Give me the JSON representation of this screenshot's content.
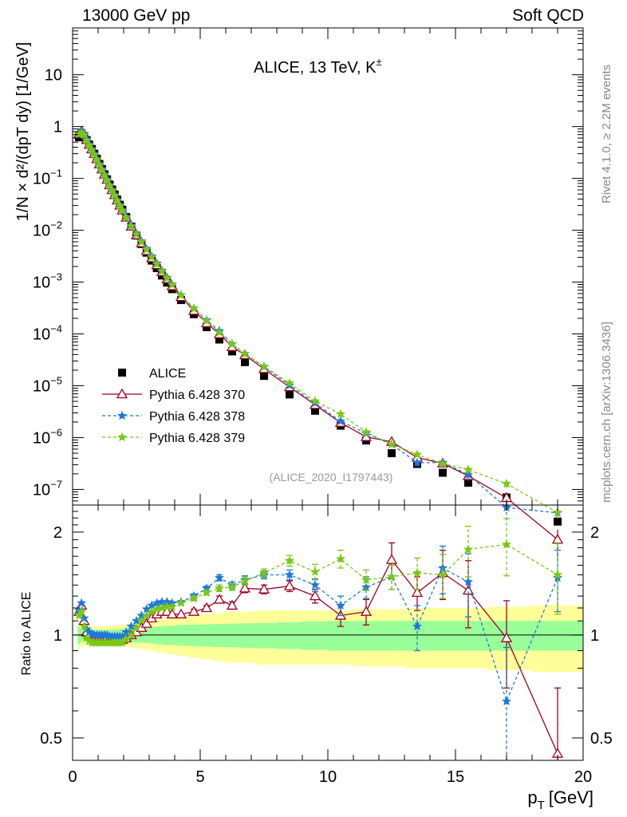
{
  "header": {
    "left": "13000 GeV pp",
    "right": "Soft QCD"
  },
  "side_labels": {
    "rivet": "Rivet 4.1.0, ≥ 2.2M events",
    "mcplots": "mcplots.cern.ch [arXiv:1306.3436]"
  },
  "chart_data": {
    "type": "scatter",
    "title": "ALICE, 13 TeV, K±",
    "title_main": "ALICE, 13 TeV, K",
    "title_sup": "±",
    "analysis_tag": "(ALICE_2020_I1797443)",
    "xlabel": "pT [GeV]",
    "xlabel_main": "p",
    "xlabel_sub": "T",
    "xlabel_unit": "[GeV]",
    "xlim": [
      0,
      20
    ],
    "x_ticks": [
      "0",
      "5",
      "10",
      "15",
      "20"
    ],
    "main_panel": {
      "ylabel": "1/N × d²/(dpT dy) [1/GeV]",
      "yscale": "log",
      "ylim": [
        5e-08,
        80
      ],
      "y_ticks": [
        {
          "value": 10,
          "label": "10"
        },
        {
          "value": 1,
          "label": "1"
        },
        {
          "value": 0.1,
          "label": "10",
          "exp": "−1"
        },
        {
          "value": 0.01,
          "label": "10",
          "exp": "−2"
        },
        {
          "value": 0.001,
          "label": "10",
          "exp": "−3"
        },
        {
          "value": 0.0001,
          "label": "10",
          "exp": "−4"
        },
        {
          "value": 1e-05,
          "label": "10",
          "exp": "−5"
        },
        {
          "value": 1e-06,
          "label": "10",
          "exp": "−6"
        },
        {
          "value": 1e-07,
          "label": "10",
          "exp": "−7"
        }
      ]
    },
    "ratio_panel": {
      "ylabel": "Ratio to ALICE",
      "yscale": "log",
      "ylim": [
        0.43,
        2.4
      ],
      "y_ticks": [
        {
          "value": 0.5,
          "label": "0.5"
        },
        {
          "value": 1,
          "label": "1"
        },
        {
          "value": 2,
          "label": "2"
        }
      ]
    },
    "x": [
      0.25,
      0.35,
      0.45,
      0.55,
      0.65,
      0.75,
      0.85,
      0.95,
      1.05,
      1.15,
      1.25,
      1.35,
      1.45,
      1.55,
      1.65,
      1.75,
      1.85,
      1.95,
      2.1,
      2.3,
      2.5,
      2.7,
      2.9,
      3.1,
      3.3,
      3.5,
      3.7,
      3.9,
      4.25,
      4.75,
      5.25,
      5.75,
      6.25,
      6.75,
      7.5,
      8.5,
      9.5,
      10.5,
      11.5,
      12.5,
      13.5,
      14.5,
      15.5,
      17.0,
      19.0
    ],
    "data": {
      "name": "ALICE",
      "values": [
        0.62,
        0.66,
        0.65,
        0.55,
        0.45,
        0.37,
        0.3,
        0.24,
        0.19,
        0.152,
        0.12,
        0.096,
        0.076,
        0.061,
        0.049,
        0.039,
        0.031,
        0.025,
        0.018,
        0.0118,
        0.0079,
        0.0054,
        0.0037,
        0.0026,
        0.00186,
        0.00134,
        0.00098,
        0.00073,
        0.00045,
        0.00024,
        0.000135,
        7.8e-05,
        4.6e-05,
        2.86e-05,
        1.55e-05,
        6.8e-06,
        3.3e-06,
        1.7e-06,
        8.8e-07,
        5e-07,
        3.1e-07,
        2.1e-07,
        1.35e-07,
        7e-08,
        2.4e-08
      ],
      "ratio_band_stat": [
        0.06,
        0.045,
        0.04,
        0.038,
        0.036,
        0.035,
        0.035,
        0.035,
        0.035,
        0.035,
        0.035,
        0.036,
        0.036,
        0.037,
        0.038,
        0.04,
        0.04,
        0.042,
        0.045,
        0.048,
        0.05,
        0.05,
        0.052,
        0.055,
        0.06,
        0.06,
        0.065,
        0.065,
        0.07,
        0.072,
        0.075,
        0.078,
        0.08,
        0.082,
        0.085,
        0.09,
        0.095,
        0.1,
        0.1,
        0.1,
        0.1,
        0.1,
        0.1,
        0.1,
        0.1
      ],
      "ratio_band_total": [
        0.09,
        0.075,
        0.07,
        0.065,
        0.062,
        0.06,
        0.06,
        0.06,
        0.06,
        0.06,
        0.06,
        0.062,
        0.063,
        0.065,
        0.066,
        0.068,
        0.07,
        0.072,
        0.075,
        0.08,
        0.085,
        0.09,
        0.095,
        0.1,
        0.11,
        0.11,
        0.12,
        0.12,
        0.13,
        0.14,
        0.15,
        0.16,
        0.17,
        0.17,
        0.18,
        0.18,
        0.18,
        0.18,
        0.19,
        0.19,
        0.2,
        0.2,
        0.2,
        0.21,
        0.22
      ]
    },
    "series": [
      {
        "name": "Pythia 6.428 370",
        "color": "#a0001e",
        "marker": "triangle-open",
        "line": "solid",
        "ratio": [
          1.17,
          1.22,
          1.1,
          1.02,
          1.0,
          0.99,
          0.99,
          0.99,
          0.99,
          0.99,
          0.99,
          0.99,
          0.98,
          0.98,
          0.98,
          0.97,
          0.97,
          0.97,
          0.98,
          1.0,
          1.02,
          1.05,
          1.08,
          1.12,
          1.15,
          1.17,
          1.17,
          1.15,
          1.15,
          1.17,
          1.2,
          1.27,
          1.22,
          1.37,
          1.36,
          1.39,
          1.3,
          1.14,
          1.17,
          1.66,
          1.33,
          1.52,
          1.35,
          0.98,
          0.45
        ],
        "ratio_err": [
          0.01,
          0.01,
          0.01,
          0.01,
          0.01,
          0.01,
          0.01,
          0.01,
          0.01,
          0.01,
          0.01,
          0.01,
          0.01,
          0.01,
          0.01,
          0.01,
          0.01,
          0.01,
          0.01,
          0.01,
          0.01,
          0.01,
          0.01,
          0.01,
          0.01,
          0.01,
          0.01,
          0.01,
          0.01,
          0.02,
          0.02,
          0.03,
          0.03,
          0.04,
          0.04,
          0.05,
          0.06,
          0.08,
          0.1,
          0.2,
          0.15,
          0.25,
          0.3,
          0.28,
          0.25
        ]
      },
      {
        "name": "Pythia 6.428 378",
        "color": "#1e78dc",
        "marker": "star",
        "line": "dashed",
        "ratio": [
          1.18,
          1.24,
          1.12,
          1.04,
          1.02,
          1.01,
          1.0,
          1.0,
          1.0,
          1.0,
          1.0,
          1.0,
          0.99,
          0.99,
          0.99,
          0.99,
          0.99,
          0.99,
          1.02,
          1.06,
          1.1,
          1.14,
          1.19,
          1.22,
          1.24,
          1.25,
          1.25,
          1.24,
          1.25,
          1.3,
          1.37,
          1.47,
          1.4,
          1.45,
          1.5,
          1.5,
          1.4,
          1.22,
          1.38,
          1.48,
          1.06,
          1.57,
          1.43,
          0.64,
          1.47
        ],
        "ratio_err": [
          0.01,
          0.01,
          0.01,
          0.01,
          0.01,
          0.01,
          0.01,
          0.01,
          0.01,
          0.01,
          0.01,
          0.01,
          0.01,
          0.01,
          0.01,
          0.01,
          0.01,
          0.01,
          0.01,
          0.01,
          0.01,
          0.01,
          0.01,
          0.01,
          0.01,
          0.01,
          0.01,
          0.01,
          0.01,
          0.02,
          0.02,
          0.03,
          0.03,
          0.04,
          0.04,
          0.05,
          0.06,
          0.08,
          0.1,
          0.12,
          0.16,
          0.25,
          0.3,
          0.28,
          0.3
        ]
      },
      {
        "name": "Pythia 6.428 379",
        "color": "#78c814",
        "marker": "star",
        "line": "dashed",
        "ratio": [
          1.14,
          1.17,
          1.06,
          0.98,
          0.96,
          0.95,
          0.95,
          0.95,
          0.95,
          0.95,
          0.95,
          0.95,
          0.95,
          0.95,
          0.95,
          0.95,
          0.95,
          0.95,
          0.97,
          1.0,
          1.05,
          1.1,
          1.14,
          1.17,
          1.19,
          1.2,
          1.21,
          1.21,
          1.24,
          1.28,
          1.33,
          1.37,
          1.38,
          1.44,
          1.52,
          1.65,
          1.53,
          1.67,
          1.45,
          1.48,
          1.52,
          1.5,
          1.78,
          1.84,
          1.5
        ],
        "ratio_err": [
          0.01,
          0.01,
          0.01,
          0.01,
          0.01,
          0.01,
          0.01,
          0.01,
          0.01,
          0.01,
          0.01,
          0.01,
          0.01,
          0.01,
          0.01,
          0.01,
          0.01,
          0.01,
          0.01,
          0.01,
          0.01,
          0.01,
          0.01,
          0.01,
          0.01,
          0.01,
          0.01,
          0.01,
          0.01,
          0.02,
          0.02,
          0.03,
          0.03,
          0.04,
          0.04,
          0.06,
          0.08,
          0.1,
          0.1,
          0.12,
          0.16,
          0.22,
          0.3,
          0.35,
          0.35
        ]
      }
    ],
    "legend": {
      "placement": "lower-left",
      "entries": [
        "ALICE",
        "Pythia 6.428 370",
        "Pythia 6.428 378",
        "Pythia 6.428 379"
      ]
    }
  }
}
